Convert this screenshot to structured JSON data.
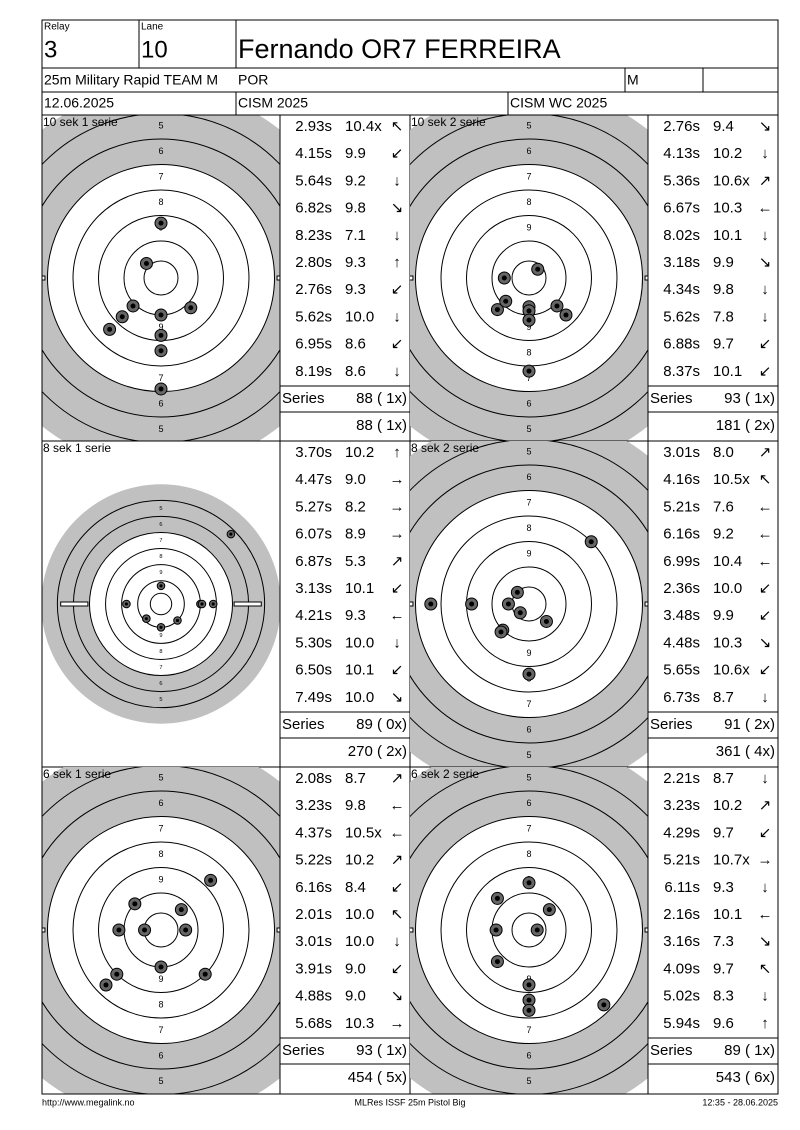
{
  "header": {
    "relay_label": "Relay",
    "relay": "3",
    "lane_label": "Lane",
    "lane": "10",
    "name": "Fernando OR7 FERREIRA",
    "event": "25m Military Rapid TEAM M",
    "nation": "POR",
    "class": "M",
    "date": "12.06.2025",
    "competition": "CISM 2025",
    "match": "CISM WC 2025"
  },
  "series_label": "Series",
  "ring_labels": [
    "5",
    "6",
    "7",
    "8",
    "9"
  ],
  "panels": [
    {
      "title": "10 sek 1 serie",
      "shots": [
        {
          "time": "2.93s",
          "score": "10.4x",
          "dir": "↖"
        },
        {
          "time": "4.15s",
          "score": "9.9",
          "dir": "↙"
        },
        {
          "time": "5.64s",
          "score": "9.2",
          "dir": "↓"
        },
        {
          "time": "6.82s",
          "score": "9.8",
          "dir": "↘"
        },
        {
          "time": "8.23s",
          "score": "7.1",
          "dir": "↓"
        },
        {
          "time": "2.80s",
          "score": "9.3",
          "dir": "↑"
        },
        {
          "time": "2.76s",
          "score": "9.3",
          "dir": "↙"
        },
        {
          "time": "5.62s",
          "score": "10.0",
          "dir": "↓"
        },
        {
          "time": "6.95s",
          "score": "8.6",
          "dir": "↙"
        },
        {
          "time": "8.19s",
          "score": "8.6",
          "dir": "↓"
        }
      ],
      "series": "88 ( 1x)",
      "total": "88 ( 1x)"
    },
    {
      "title": "10 sek 2 serie",
      "shots": [
        {
          "time": "2.76s",
          "score": "9.4",
          "dir": "↘"
        },
        {
          "time": "4.13s",
          "score": "10.2",
          "dir": "↓"
        },
        {
          "time": "5.36s",
          "score": "10.6x",
          "dir": "↗"
        },
        {
          "time": "6.67s",
          "score": "10.3",
          "dir": "←"
        },
        {
          "time": "8.02s",
          "score": "10.1",
          "dir": "↓"
        },
        {
          "time": "3.18s",
          "score": "9.9",
          "dir": "↘"
        },
        {
          "time": "4.34s",
          "score": "9.8",
          "dir": "↓"
        },
        {
          "time": "5.62s",
          "score": "7.8",
          "dir": "↓"
        },
        {
          "time": "6.88s",
          "score": "9.7",
          "dir": "↙"
        },
        {
          "time": "8.37s",
          "score": "10.1",
          "dir": "↙"
        }
      ],
      "series": "93 ( 1x)",
      "total": "181 ( 2x)"
    },
    {
      "title": "8 sek 1 serie",
      "shots": [
        {
          "time": "3.70s",
          "score": "10.2",
          "dir": "↑"
        },
        {
          "time": "4.47s",
          "score": "9.0",
          "dir": "→"
        },
        {
          "time": "5.27s",
          "score": "8.2",
          "dir": "→"
        },
        {
          "time": "6.07s",
          "score": "8.9",
          "dir": "→"
        },
        {
          "time": "6.87s",
          "score": "5.3",
          "dir": "↗"
        },
        {
          "time": "3.13s",
          "score": "10.1",
          "dir": "↙"
        },
        {
          "time": "4.21s",
          "score": "9.3",
          "dir": "←"
        },
        {
          "time": "5.30s",
          "score": "10.0",
          "dir": "↓"
        },
        {
          "time": "6.50s",
          "score": "10.1",
          "dir": "↙"
        },
        {
          "time": "7.49s",
          "score": "10.0",
          "dir": "↘"
        }
      ],
      "series": "89 ( 0x)",
      "total": "270 ( 2x)"
    },
    {
      "title": "8 sek 2 serie",
      "shots": [
        {
          "time": "3.01s",
          "score": "8.0",
          "dir": "↗"
        },
        {
          "time": "4.16s",
          "score": "10.5x",
          "dir": "↖"
        },
        {
          "time": "5.21s",
          "score": "7.6",
          "dir": "←"
        },
        {
          "time": "6.16s",
          "score": "9.2",
          "dir": "←"
        },
        {
          "time": "6.99s",
          "score": "10.4",
          "dir": "←"
        },
        {
          "time": "2.36s",
          "score": "10.0",
          "dir": "↙"
        },
        {
          "time": "3.48s",
          "score": "9.9",
          "dir": "↙"
        },
        {
          "time": "4.48s",
          "score": "10.3",
          "dir": "↘"
        },
        {
          "time": "5.65s",
          "score": "10.6x",
          "dir": "↙"
        },
        {
          "time": "6.73s",
          "score": "8.7",
          "dir": "↓"
        }
      ],
      "series": "91 ( 2x)",
      "total": "361 ( 4x)"
    },
    {
      "title": "6 sek 1 serie",
      "shots": [
        {
          "time": "2.08s",
          "score": "8.7",
          "dir": "↗"
        },
        {
          "time": "3.23s",
          "score": "9.8",
          "dir": "←"
        },
        {
          "time": "4.37s",
          "score": "10.5x",
          "dir": "←"
        },
        {
          "time": "5.22s",
          "score": "10.2",
          "dir": "↗"
        },
        {
          "time": "6.16s",
          "score": "8.4",
          "dir": "↙"
        },
        {
          "time": "2.01s",
          "score": "10.0",
          "dir": "↖"
        },
        {
          "time": "3.01s",
          "score": "10.0",
          "dir": "↓"
        },
        {
          "time": "3.91s",
          "score": "9.0",
          "dir": "↙"
        },
        {
          "time": "4.88s",
          "score": "9.0",
          "dir": "↘"
        },
        {
          "time": "5.68s",
          "score": "10.3",
          "dir": "→"
        }
      ],
      "series": "93 ( 1x)",
      "total": "454 ( 5x)"
    },
    {
      "title": "6 sek 2 serie",
      "shots": [
        {
          "time": "2.21s",
          "score": "8.7",
          "dir": "↓"
        },
        {
          "time": "3.23s",
          "score": "10.2",
          "dir": "↗"
        },
        {
          "time": "4.29s",
          "score": "9.7",
          "dir": "↙"
        },
        {
          "time": "5.21s",
          "score": "10.7x",
          "dir": "→"
        },
        {
          "time": "6.11s",
          "score": "9.3",
          "dir": "↓"
        },
        {
          "time": "2.16s",
          "score": "10.1",
          "dir": "←"
        },
        {
          "time": "3.16s",
          "score": "7.3",
          "dir": "↘"
        },
        {
          "time": "4.09s",
          "score": "9.7",
          "dir": "↖"
        },
        {
          "time": "5.02s",
          "score": "8.3",
          "dir": "↓"
        },
        {
          "time": "5.94s",
          "score": "9.6",
          "dir": "↑"
        }
      ],
      "series": "89 ( 1x)",
      "total": "543 ( 6x)"
    }
  ],
  "footer": {
    "url": "http://www.megalink.no",
    "software": "MLRes ISSF 25m Pistol Big",
    "timestamp": "12:35 - 28.06.2025"
  }
}
